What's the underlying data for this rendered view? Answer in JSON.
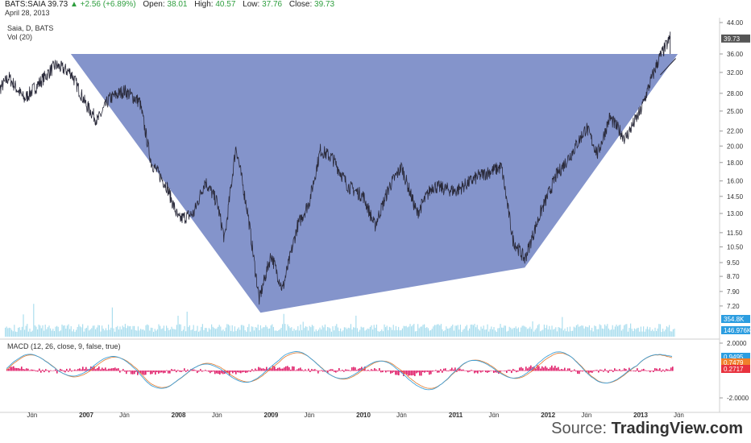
{
  "header": {
    "symbol": "BATS:SAIA",
    "price": "39.73",
    "change": "▲ +2.56 (+6.89%)",
    "open_label": "Open:",
    "open": "38.01",
    "high_label": "High:",
    "high": "40.57",
    "low_label": "Low:",
    "low": "37.76",
    "close_label": "Close:",
    "close": "39.73",
    "date": "April 28, 2013"
  },
  "price_pane": {
    "title": "Saia, D, BATS",
    "vol_label": "Vol (20)",
    "last_price_tag": "39.73",
    "vol_tag_1": "354.8K",
    "vol_tag_2": "146.976K"
  },
  "macd_pane": {
    "title": "MACD (12, 26, close, 9, false, true)",
    "tag_1": "0.9495",
    "tag_2": "0.7479",
    "tag_3": "0.2717",
    "tick_labels": [
      "2.0000",
      "-2.0000"
    ]
  },
  "source": {
    "label": "Source:",
    "brand": "TradingView.com"
  },
  "colors": {
    "triangle": "#6f81c2",
    "price_line": "#2a2a3a",
    "volume": "#8fd3e8",
    "macd_line": "#3fa0d8",
    "signal_line": "#e07a2e",
    "histogram": "#e0206a",
    "tag_red": "#e8323e",
    "tag_orange": "#f0802c",
    "tag_blue": "#2c9de0",
    "tag_dark": "#555555"
  },
  "chart_data": [
    {
      "type": "line",
      "title": "Saia, D, BATS",
      "y_scale": "log",
      "yticks": [
        44.0,
        36.0,
        32.0,
        28.0,
        25.0,
        22.0,
        20.0,
        18.0,
        16.0,
        14.5,
        13.0,
        11.5,
        10.5,
        9.5,
        8.7,
        7.9,
        7.2
      ],
      "ytick_labels": [
        "44.00",
        "36.00",
        "32.00",
        "28.00",
        "25.00",
        "22.00",
        "20.00",
        "18.00",
        "16.00",
        "14.50",
        "13.00",
        "11.50",
        "10.50",
        "9.50",
        "8.70",
        "7.90",
        "7.20"
      ],
      "x_labels": [
        "Jun",
        "2007",
        "Jun",
        "2008",
        "Jun",
        "2009",
        "Jun",
        "2010",
        "Jun",
        "2011",
        "Jun",
        "2012",
        "Jun",
        "2013",
        "Jun"
      ],
      "x_label_dates": [
        "2006-06-01",
        "2007-01-01",
        "2007-06-01",
        "2008-01-01",
        "2008-06-01",
        "2009-01-01",
        "2009-06-01",
        "2010-01-01",
        "2010-06-01",
        "2011-01-01",
        "2011-06-01",
        "2012-01-01",
        "2012-06-01",
        "2013-01-01",
        "2013-06-01"
      ],
      "series": [
        {
          "values_approx": [
            [
              "2006-01-01",
              27.5
            ],
            [
              "2006-03-01",
              31.0
            ],
            [
              "2006-05-01",
              27.0
            ],
            [
              "2006-07-01",
              30.0
            ],
            [
              "2006-09-01",
              33.5
            ],
            [
              "2006-11-01",
              32.0
            ],
            [
              "2007-01-01",
              26.0
            ],
            [
              "2007-02-15",
              23.5
            ],
            [
              "2007-04-01",
              27.0
            ],
            [
              "2007-06-01",
              28.5
            ],
            [
              "2007-08-01",
              26.5
            ],
            [
              "2007-09-15",
              18.0
            ],
            [
              "2007-11-15",
              15.5
            ],
            [
              "2008-01-01",
              12.5
            ],
            [
              "2008-03-01",
              13.0
            ],
            [
              "2008-04-15",
              16.0
            ],
            [
              "2008-06-01",
              14.0
            ],
            [
              "2008-07-01",
              11.0
            ],
            [
              "2008-08-15",
              20.0
            ],
            [
              "2008-10-01",
              13.0
            ],
            [
              "2008-11-15",
              7.5
            ],
            [
              "2009-01-01",
              10.0
            ],
            [
              "2009-02-15",
              8.0
            ],
            [
              "2009-04-15",
              12.0
            ],
            [
              "2009-06-01",
              14.0
            ],
            [
              "2009-07-15",
              19.5
            ],
            [
              "2009-09-01",
              18.5
            ],
            [
              "2009-11-01",
              15.5
            ],
            [
              "2010-01-01",
              14.5
            ],
            [
              "2010-02-15",
              12.0
            ],
            [
              "2010-04-15",
              15.5
            ],
            [
              "2010-06-01",
              17.5
            ],
            [
              "2010-08-01",
              13.0
            ],
            [
              "2010-10-01",
              15.5
            ],
            [
              "2011-01-01",
              15.0
            ],
            [
              "2011-04-01",
              16.5
            ],
            [
              "2011-07-01",
              17.5
            ],
            [
              "2011-08-15",
              11.0
            ],
            [
              "2011-10-01",
              9.7
            ],
            [
              "2011-12-01",
              13.0
            ],
            [
              "2012-02-01",
              16.5
            ],
            [
              "2012-04-01",
              19.0
            ],
            [
              "2012-06-01",
              22.5
            ],
            [
              "2012-07-15",
              19.0
            ],
            [
              "2012-09-01",
              24.0
            ],
            [
              "2012-11-01",
              21.0
            ],
            [
              "2013-01-01",
              25.0
            ],
            [
              "2013-02-15",
              31.0
            ],
            [
              "2013-03-15",
              35.0
            ],
            [
              "2013-04-28",
              39.73
            ]
          ]
        }
      ],
      "shapes": [
        {
          "type": "triangle",
          "points": [
            [
              "2006-11-01",
              36.0
            ],
            [
              "2013-05-28",
              36.0
            ],
            [
              "2011-10-01",
              9.2
            ],
            [
              "2008-11-20",
              6.9
            ]
          ]
        }
      ]
    },
    {
      "type": "bar",
      "title": "Vol (20)"
    },
    {
      "type": "line",
      "title": "MACD (12, 26, close, 9, false, true)",
      "yticks": [
        2.0,
        -2.0
      ],
      "ytick_labels": [
        "2.0000",
        "-2.0000"
      ]
    }
  ]
}
